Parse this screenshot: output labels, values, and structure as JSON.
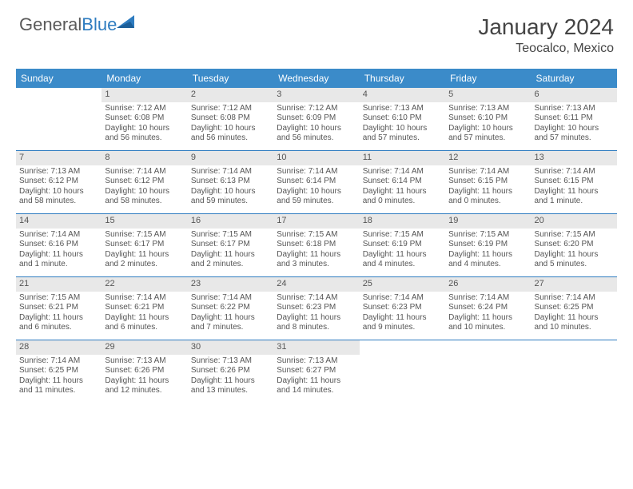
{
  "brand": {
    "part1": "General",
    "part2": "Blue"
  },
  "title": "January 2024",
  "location": "Teocalco, Mexico",
  "colors": {
    "header_bg": "#3b8bc9",
    "rule": "#2e7cc0",
    "daynum_bg": "#e8e8e8",
    "text": "#555555",
    "brand_gray": "#5a5a5a",
    "brand_blue": "#2e7cc0"
  },
  "day_names": [
    "Sunday",
    "Monday",
    "Tuesday",
    "Wednesday",
    "Thursday",
    "Friday",
    "Saturday"
  ],
  "weeks": [
    [
      null,
      {
        "n": "1",
        "sr": "Sunrise: 7:12 AM",
        "ss": "Sunset: 6:08 PM",
        "d1": "Daylight: 10 hours",
        "d2": "and 56 minutes."
      },
      {
        "n": "2",
        "sr": "Sunrise: 7:12 AM",
        "ss": "Sunset: 6:08 PM",
        "d1": "Daylight: 10 hours",
        "d2": "and 56 minutes."
      },
      {
        "n": "3",
        "sr": "Sunrise: 7:12 AM",
        "ss": "Sunset: 6:09 PM",
        "d1": "Daylight: 10 hours",
        "d2": "and 56 minutes."
      },
      {
        "n": "4",
        "sr": "Sunrise: 7:13 AM",
        "ss": "Sunset: 6:10 PM",
        "d1": "Daylight: 10 hours",
        "d2": "and 57 minutes."
      },
      {
        "n": "5",
        "sr": "Sunrise: 7:13 AM",
        "ss": "Sunset: 6:10 PM",
        "d1": "Daylight: 10 hours",
        "d2": "and 57 minutes."
      },
      {
        "n": "6",
        "sr": "Sunrise: 7:13 AM",
        "ss": "Sunset: 6:11 PM",
        "d1": "Daylight: 10 hours",
        "d2": "and 57 minutes."
      }
    ],
    [
      {
        "n": "7",
        "sr": "Sunrise: 7:13 AM",
        "ss": "Sunset: 6:12 PM",
        "d1": "Daylight: 10 hours",
        "d2": "and 58 minutes."
      },
      {
        "n": "8",
        "sr": "Sunrise: 7:14 AM",
        "ss": "Sunset: 6:12 PM",
        "d1": "Daylight: 10 hours",
        "d2": "and 58 minutes."
      },
      {
        "n": "9",
        "sr": "Sunrise: 7:14 AM",
        "ss": "Sunset: 6:13 PM",
        "d1": "Daylight: 10 hours",
        "d2": "and 59 minutes."
      },
      {
        "n": "10",
        "sr": "Sunrise: 7:14 AM",
        "ss": "Sunset: 6:14 PM",
        "d1": "Daylight: 10 hours",
        "d2": "and 59 minutes."
      },
      {
        "n": "11",
        "sr": "Sunrise: 7:14 AM",
        "ss": "Sunset: 6:14 PM",
        "d1": "Daylight: 11 hours",
        "d2": "and 0 minutes."
      },
      {
        "n": "12",
        "sr": "Sunrise: 7:14 AM",
        "ss": "Sunset: 6:15 PM",
        "d1": "Daylight: 11 hours",
        "d2": "and 0 minutes."
      },
      {
        "n": "13",
        "sr": "Sunrise: 7:14 AM",
        "ss": "Sunset: 6:15 PM",
        "d1": "Daylight: 11 hours",
        "d2": "and 1 minute."
      }
    ],
    [
      {
        "n": "14",
        "sr": "Sunrise: 7:14 AM",
        "ss": "Sunset: 6:16 PM",
        "d1": "Daylight: 11 hours",
        "d2": "and 1 minute."
      },
      {
        "n": "15",
        "sr": "Sunrise: 7:15 AM",
        "ss": "Sunset: 6:17 PM",
        "d1": "Daylight: 11 hours",
        "d2": "and 2 minutes."
      },
      {
        "n": "16",
        "sr": "Sunrise: 7:15 AM",
        "ss": "Sunset: 6:17 PM",
        "d1": "Daylight: 11 hours",
        "d2": "and 2 minutes."
      },
      {
        "n": "17",
        "sr": "Sunrise: 7:15 AM",
        "ss": "Sunset: 6:18 PM",
        "d1": "Daylight: 11 hours",
        "d2": "and 3 minutes."
      },
      {
        "n": "18",
        "sr": "Sunrise: 7:15 AM",
        "ss": "Sunset: 6:19 PM",
        "d1": "Daylight: 11 hours",
        "d2": "and 4 minutes."
      },
      {
        "n": "19",
        "sr": "Sunrise: 7:15 AM",
        "ss": "Sunset: 6:19 PM",
        "d1": "Daylight: 11 hours",
        "d2": "and 4 minutes."
      },
      {
        "n": "20",
        "sr": "Sunrise: 7:15 AM",
        "ss": "Sunset: 6:20 PM",
        "d1": "Daylight: 11 hours",
        "d2": "and 5 minutes."
      }
    ],
    [
      {
        "n": "21",
        "sr": "Sunrise: 7:15 AM",
        "ss": "Sunset: 6:21 PM",
        "d1": "Daylight: 11 hours",
        "d2": "and 6 minutes."
      },
      {
        "n": "22",
        "sr": "Sunrise: 7:14 AM",
        "ss": "Sunset: 6:21 PM",
        "d1": "Daylight: 11 hours",
        "d2": "and 6 minutes."
      },
      {
        "n": "23",
        "sr": "Sunrise: 7:14 AM",
        "ss": "Sunset: 6:22 PM",
        "d1": "Daylight: 11 hours",
        "d2": "and 7 minutes."
      },
      {
        "n": "24",
        "sr": "Sunrise: 7:14 AM",
        "ss": "Sunset: 6:23 PM",
        "d1": "Daylight: 11 hours",
        "d2": "and 8 minutes."
      },
      {
        "n": "25",
        "sr": "Sunrise: 7:14 AM",
        "ss": "Sunset: 6:23 PM",
        "d1": "Daylight: 11 hours",
        "d2": "and 9 minutes."
      },
      {
        "n": "26",
        "sr": "Sunrise: 7:14 AM",
        "ss": "Sunset: 6:24 PM",
        "d1": "Daylight: 11 hours",
        "d2": "and 10 minutes."
      },
      {
        "n": "27",
        "sr": "Sunrise: 7:14 AM",
        "ss": "Sunset: 6:25 PM",
        "d1": "Daylight: 11 hours",
        "d2": "and 10 minutes."
      }
    ],
    [
      {
        "n": "28",
        "sr": "Sunrise: 7:14 AM",
        "ss": "Sunset: 6:25 PM",
        "d1": "Daylight: 11 hours",
        "d2": "and 11 minutes."
      },
      {
        "n": "29",
        "sr": "Sunrise: 7:13 AM",
        "ss": "Sunset: 6:26 PM",
        "d1": "Daylight: 11 hours",
        "d2": "and 12 minutes."
      },
      {
        "n": "30",
        "sr": "Sunrise: 7:13 AM",
        "ss": "Sunset: 6:26 PM",
        "d1": "Daylight: 11 hours",
        "d2": "and 13 minutes."
      },
      {
        "n": "31",
        "sr": "Sunrise: 7:13 AM",
        "ss": "Sunset: 6:27 PM",
        "d1": "Daylight: 11 hours",
        "d2": "and 14 minutes."
      },
      null,
      null,
      null
    ]
  ]
}
